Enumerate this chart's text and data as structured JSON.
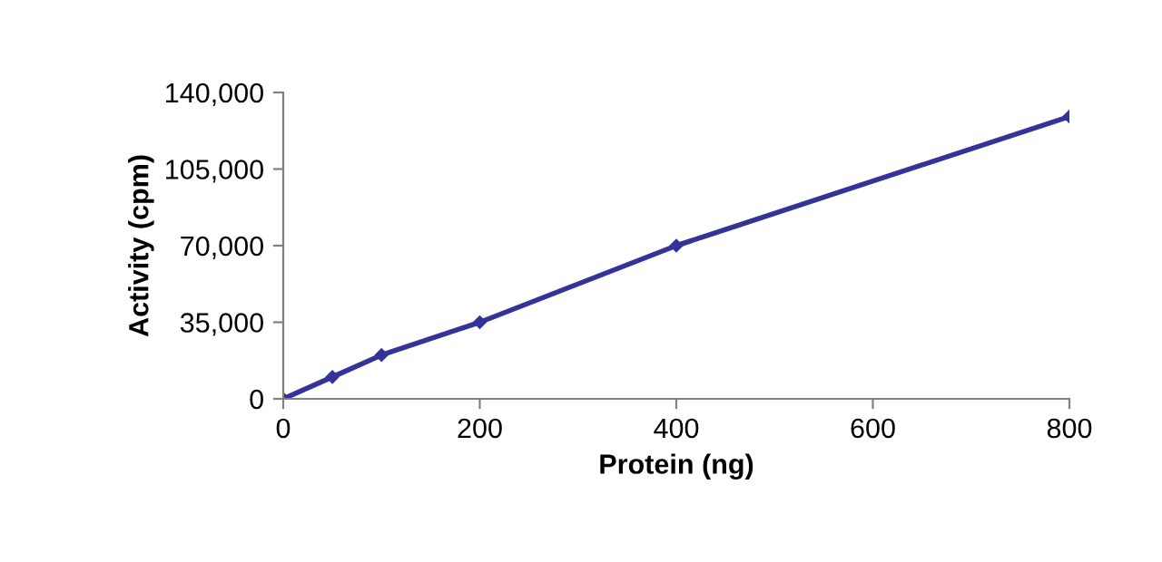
{
  "chart_data": {
    "type": "line",
    "xlabel": "Protein (ng)",
    "ylabel": "Activity (cpm)",
    "x": [
      0,
      50,
      100,
      200,
      400,
      800
    ],
    "series": [
      {
        "color": "#333399",
        "values": [
          0,
          10000,
          20000,
          35000,
          70000,
          129000
        ]
      }
    ],
    "xlim": [
      0,
      800
    ],
    "xticks": [
      0,
      200,
      400,
      600,
      800
    ],
    "ylim": [
      0,
      140000
    ],
    "yticks": [
      {
        "value": 0,
        "label": "0"
      },
      {
        "value": 35000,
        "label": "35,000"
      },
      {
        "value": 70000,
        "label": "70,000"
      },
      {
        "value": 105000,
        "label": "105,000"
      },
      {
        "value": 140000,
        "label": "140,000"
      }
    ],
    "grid": false,
    "marker": "diamond",
    "line_style": "solid"
  }
}
